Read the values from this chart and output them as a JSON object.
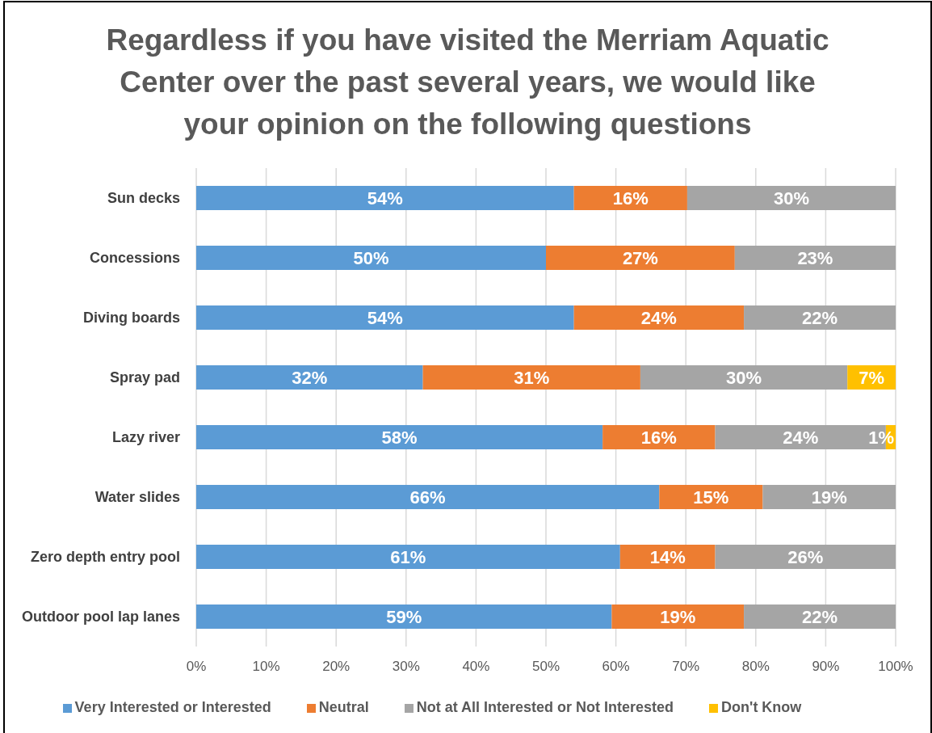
{
  "chart_data": {
    "type": "bar",
    "orientation": "horizontal",
    "stacked": true,
    "title": "Regardless if you have visited the Merriam Aquatic Center over the past several years, we would like your opinion on the following questions",
    "categories": [
      "Sun decks",
      "Concessions",
      "Diving boards",
      "Spray pad",
      "Lazy river",
      "Water slides",
      "Zero depth entry pool",
      "Outdoor pool lap lanes"
    ],
    "series": [
      {
        "name": "Very Interested or Interested",
        "color": "#5b9bd5",
        "values": [
          54.0,
          50.0,
          54.0,
          32.4,
          58.1,
          66.2,
          60.6,
          59.4
        ],
        "value_labels": [
          "54%",
          "50%",
          "54%",
          "32%",
          "58%",
          "66%",
          "61%",
          "59%"
        ]
      },
      {
        "name": "Neutral",
        "color": "#ed7d31",
        "values": [
          16.2,
          27.0,
          24.3,
          31.1,
          16.1,
          14.8,
          13.6,
          18.9
        ],
        "value_labels": [
          "16%",
          "27%",
          "24%",
          "31%",
          "16%",
          "15%",
          "14%",
          "19%"
        ]
      },
      {
        "name": "Not at All Interested or Not Interested",
        "color": "#a5a5a5",
        "values": [
          29.8,
          23.0,
          21.7,
          29.6,
          24.4,
          19.0,
          25.8,
          21.7
        ],
        "value_labels": [
          "30%",
          "23%",
          "22%",
          "30%",
          "24%",
          "19%",
          "26%",
          "22%"
        ]
      },
      {
        "name": "Don't Know",
        "color": "#ffc000",
        "values": [
          null,
          null,
          null,
          6.9,
          1.4,
          null,
          null,
          null
        ],
        "value_labels": [
          null,
          null,
          null,
          "7%",
          "1%",
          null,
          null,
          null
        ]
      }
    ],
    "xlim": [
      0,
      100
    ],
    "xticks": [
      {
        "value": 0,
        "label": "0%"
      },
      {
        "value": 10,
        "label": "10%"
      },
      {
        "value": 20,
        "label": "20%"
      },
      {
        "value": 30,
        "label": "30%"
      },
      {
        "value": 40,
        "label": "40%"
      },
      {
        "value": 50,
        "label": "50%"
      },
      {
        "value": 60,
        "label": "60%"
      },
      {
        "value": 70,
        "label": "70%"
      },
      {
        "value": 80,
        "label": "80%"
      },
      {
        "value": 90,
        "label": "90%"
      },
      {
        "value": 100,
        "label": "100%"
      }
    ],
    "grid": "x",
    "legend": "bottom"
  }
}
